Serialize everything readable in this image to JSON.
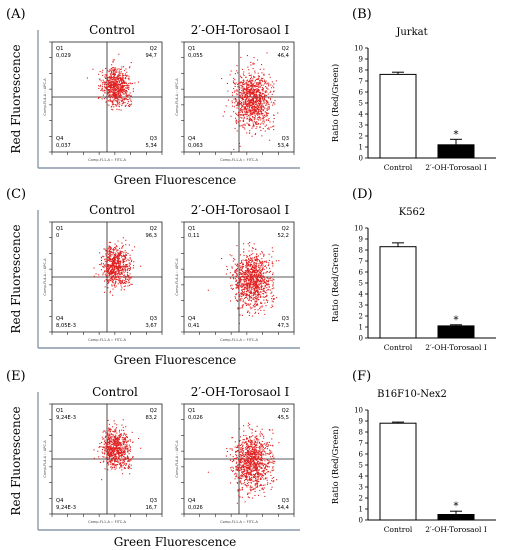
{
  "panels": [
    {
      "letter": "(A)",
      "control_label": "Control",
      "treated_label": "2′-OH-Torosaol I",
      "ylabel": "Red Fluorescence",
      "xlabel": "Green Fluorescence",
      "control": {
        "q1": "Q1",
        "q1v": "0,029",
        "q2": "Q2",
        "q2v": "94,7",
        "q3": "Q3",
        "q3v": "5,34",
        "q4": "Q4",
        "q4v": "0,037",
        "yaxis": "Comp-FL4-A :: APC-A",
        "xaxis": "Comp-FL1-A :: FITC-A"
      },
      "treated": {
        "q1": "Q1",
        "q1v": "0,055",
        "q2": "Q2",
        "q2v": "46,4",
        "q3": "Q3",
        "q3v": "53,4",
        "q4": "Q4",
        "q4v": "0,063",
        "yaxis": "Comp-FL4-A :: APC-A",
        "xaxis": "Comp-FL1-A :: FITC-A"
      }
    },
    {
      "letter": "(C)",
      "control_label": "Control",
      "treated_label": "2′-OH-Torosaol I",
      "ylabel": "Red Fluorescence",
      "xlabel": "Green Fluorescence",
      "control": {
        "q1": "Q1",
        "q1v": "0",
        "q2": "Q2",
        "q2v": "96,3",
        "q3": "Q3",
        "q3v": "3,67",
        "q4": "Q4",
        "q4v": "8,05E-3",
        "yaxis": "Comp-FL4-A :: APC-A",
        "xaxis": "Comp-FL1-A :: FITC-A"
      },
      "treated": {
        "q1": "Q1",
        "q1v": "0,11",
        "q2": "Q2",
        "q2v": "52,2",
        "q3": "Q3",
        "q3v": "47,3",
        "q4": "Q4",
        "q4v": "0,41",
        "yaxis": "Comp-FL4-A :: APC-A",
        "xaxis": "Comp-FL1-A :: FITC-A"
      }
    },
    {
      "letter": "(E)",
      "control_label": "Control",
      "treated_label": "2′-OH-Torosaol I",
      "ylabel": "Red Fluorescence",
      "xlabel": "Green Fluorescence",
      "control": {
        "q1": "Q1",
        "q1v": "9,24E-3",
        "q2": "Q2",
        "q2v": "83,2",
        "q3": "Q3",
        "q3v": "16,7",
        "q4": "Q4",
        "q4v": "9,24E-3",
        "yaxis": "Comp-FL4-A :: APC-A",
        "xaxis": "Comp-FL1-A :: FITC-A"
      },
      "treated": {
        "q1": "Q1",
        "q1v": "0,026",
        "q2": "Q2",
        "q2v": "45,5",
        "q3": "Q3",
        "q3v": "54,4",
        "q4": "Q4",
        "q4v": "0,026",
        "yaxis": "Comp-FL4-A :: APC-A",
        "xaxis": "Comp-FL1-A :: FITC-A"
      }
    }
  ],
  "colors": {
    "dots": "#e02020",
    "axis": "#8899aa",
    "text": "#000000"
  },
  "chart_data": [
    {
      "type": "bar",
      "letter": "(B)",
      "title": "Jurkat",
      "categories": [
        "Control",
        "2′-OH-Torosaol I"
      ],
      "values": [
        7.6,
        1.2
      ],
      "errors": [
        0.2,
        0.5
      ],
      "fills": [
        "#ffffff",
        "#000000"
      ],
      "significance": [
        "",
        "*"
      ],
      "ylabel": "Ratio (Red/Green)",
      "ylim": [
        0,
        10
      ],
      "ticks": [
        "0",
        "1",
        "2",
        "3",
        "4",
        "5",
        "6",
        "7",
        "8",
        "9",
        "10"
      ]
    },
    {
      "type": "bar",
      "letter": "(D)",
      "title": "K562",
      "categories": [
        "Control",
        "2′-OH-Torosaol I"
      ],
      "values": [
        8.3,
        1.1
      ],
      "errors": [
        0.35,
        0.1
      ],
      "fills": [
        "#ffffff",
        "#000000"
      ],
      "significance": [
        "",
        "*"
      ],
      "ylabel": "Ratio (Red/Green)",
      "ylim": [
        0,
        10
      ],
      "ticks": [
        "0",
        "1",
        "2",
        "3",
        "4",
        "5",
        "6",
        "7",
        "8",
        "9",
        "10"
      ]
    },
    {
      "type": "bar",
      "letter": "(F)",
      "title": "B16F10-Nex2",
      "categories": [
        "Control",
        "2′-OH-Torosaol I"
      ],
      "values": [
        8.8,
        0.5
      ],
      "errors": [
        0.1,
        0.3
      ],
      "fills": [
        "#ffffff",
        "#000000"
      ],
      "significance": [
        "",
        "*"
      ],
      "ylabel": "Ratio (Red/Green)",
      "ylim": [
        0,
        10
      ],
      "ticks": [
        "0",
        "1",
        "2",
        "3",
        "4",
        "5",
        "6",
        "7",
        "8",
        "9",
        "10"
      ]
    }
  ]
}
